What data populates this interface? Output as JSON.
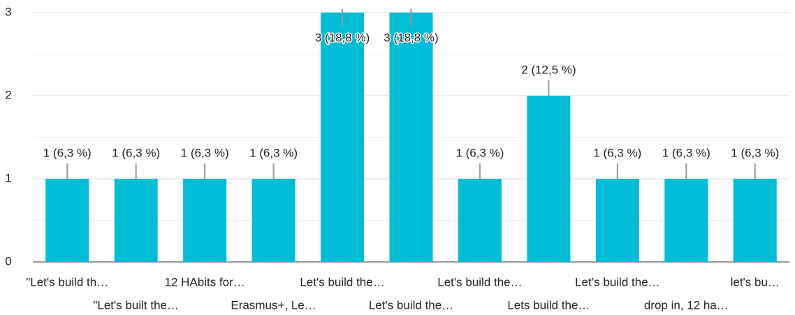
{
  "chart_data": {
    "type": "bar",
    "categories": [
      "\"Let's build th…",
      "\"Let's built the…",
      "12 HAbits for…",
      "Erasmus+, Le…",
      "Let's build the…",
      "Let's build the…",
      "Let's build the…",
      "Lets build the…",
      "Let’s build the…",
      "drop in, 12 ha…",
      "let's bu…"
    ],
    "values": [
      1,
      1,
      1,
      1,
      3,
      3,
      1,
      2,
      1,
      1,
      1
    ],
    "value_labels": [
      "1 (6,3 %)",
      "1 (6,3 %)",
      "1 (6,3 %)",
      "1 (6,3 %)",
      "3 (18,8 %)",
      "3 (18,8 %)",
      "1 (6,3 %)",
      "2 (12,5 %)",
      "1 (6,3 %)",
      "1 (6,3 %)",
      "1 (6,3 %)"
    ],
    "color": "#00bcd4",
    "ylim": [
      0,
      3
    ],
    "yticks": [
      0,
      1,
      2,
      3
    ],
    "minor_yticks": [
      0.5,
      1.5,
      2.5
    ],
    "grid": true
  }
}
